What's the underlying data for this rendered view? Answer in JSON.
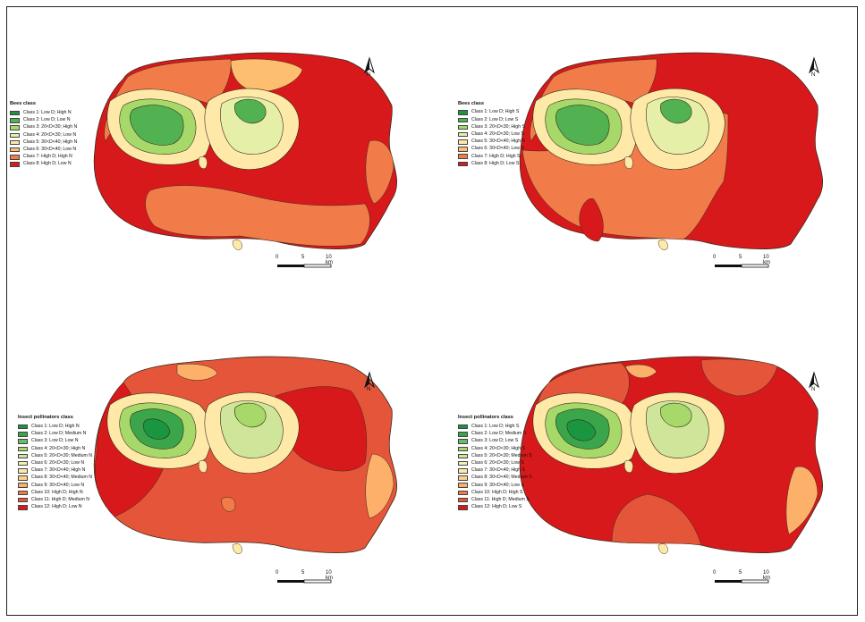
{
  "north_label": "N",
  "scale": {
    "labels": [
      "0",
      "5",
      "10 km"
    ]
  },
  "colors": {
    "c_darkgreen": "#1e8c3a",
    "c_green": "#4fae4a",
    "c_lightgreen": "#a9d27a",
    "c_paleyellow": "#f4f0b0",
    "c_lightorange": "#f6cf8d",
    "c_peach": "#f5b06a",
    "c_orange": "#ee7e4b",
    "c_redorange": "#e3563a",
    "c_red": "#d7191c",
    "outline": "#3a2a1a"
  },
  "panels": [
    {
      "legend_title": "Bees class",
      "items": [
        {
          "label": "Class 1: Low D; High N",
          "color": "#1a9641"
        },
        {
          "label": "Class 2: Low D; Low N",
          "color": "#52b151"
        },
        {
          "label": "Class 3: 20<D<30; High N",
          "color": "#a6d96a"
        },
        {
          "label": "Class 4: 20<D<30; Low N",
          "color": "#e6efa8"
        },
        {
          "label": "Class 5: 30<D<40; High N",
          "color": "#fee9a8"
        },
        {
          "label": "Class 6: 30<D<40; Low N",
          "color": "#fdbf6f"
        },
        {
          "label": "Class 7: High D; High N",
          "color": "#f17c4a"
        },
        {
          "label": "Class 8: High D; Low N",
          "color": "#d7191c"
        }
      ]
    },
    {
      "legend_title": "Bees class",
      "items": [
        {
          "label": "Class 1: Low D; High S",
          "color": "#1a9641"
        },
        {
          "label": "Class 2: Low D; Low S",
          "color": "#52b151"
        },
        {
          "label": "Class 3: 20<D<30; High S",
          "color": "#a6d96a"
        },
        {
          "label": "Class 4: 20<D<30; Low S",
          "color": "#e6efa8"
        },
        {
          "label": "Class 5: 30<D<40; High S",
          "color": "#fee9a8"
        },
        {
          "label": "Class 6: 30<D<40; Low S",
          "color": "#fdbf6f"
        },
        {
          "label": "Class 7: High D; High S",
          "color": "#f17c4a"
        },
        {
          "label": "Class 8: High D; Low S",
          "color": "#d7191c"
        }
      ]
    },
    {
      "legend_title": "Insect pollinators class",
      "items": [
        {
          "label": "Class 1: Low D; High N",
          "color": "#1a9641"
        },
        {
          "label": "Class 2: Low D; Medium N",
          "color": "#3aa54a"
        },
        {
          "label": "Class 3: Low D; Low N",
          "color": "#66bd63"
        },
        {
          "label": "Class 4: 20<D<30; High N",
          "color": "#a6d96a"
        },
        {
          "label": "Class 5: 20<D<30; Medium N",
          "color": "#cfe69a"
        },
        {
          "label": "Class 6: 20<D<30; Low N",
          "color": "#eef2b4"
        },
        {
          "label": "Class 7: 30<D<40; High N",
          "color": "#fee9a8"
        },
        {
          "label": "Class 8: 30<D<40; Medium N",
          "color": "#fdd08a"
        },
        {
          "label": "Class 9: 30<D<40; Low N",
          "color": "#fdb06a"
        },
        {
          "label": "Class 10: High D; High N",
          "color": "#f17c4a"
        },
        {
          "label": "Class 11: High D; Medium N",
          "color": "#e4553a"
        },
        {
          "label": "Class 12: High D; Low N",
          "color": "#d7191c"
        }
      ]
    },
    {
      "legend_title": "Insect pollinators class",
      "items": [
        {
          "label": "Class 1: Low D; High S",
          "color": "#1a9641"
        },
        {
          "label": "Class 2: Low D; Medium S",
          "color": "#3aa54a"
        },
        {
          "label": "Class 3: Low D; Low S",
          "color": "#66bd63"
        },
        {
          "label": "Class 4: 20<D<30; High S",
          "color": "#a6d96a"
        },
        {
          "label": "Class 5: 20<D<30; Medium S",
          "color": "#cfe69a"
        },
        {
          "label": "Class 6: 20<D<30; Low S",
          "color": "#eef2b4"
        },
        {
          "label": "Class 7: 30<D<40; High S",
          "color": "#fee9a8"
        },
        {
          "label": "Class 8: 30<D<40; Medium S",
          "color": "#fdd08a"
        },
        {
          "label": "Class 9: 30<D<40; Low S",
          "color": "#fdb06a"
        },
        {
          "label": "Class 10: High D; High S",
          "color": "#f17c4a"
        },
        {
          "label": "Class 11: High D; Medium S",
          "color": "#e4553a"
        },
        {
          "label": "Class 12: High D; Low S",
          "color": "#d7191c"
        }
      ]
    }
  ]
}
